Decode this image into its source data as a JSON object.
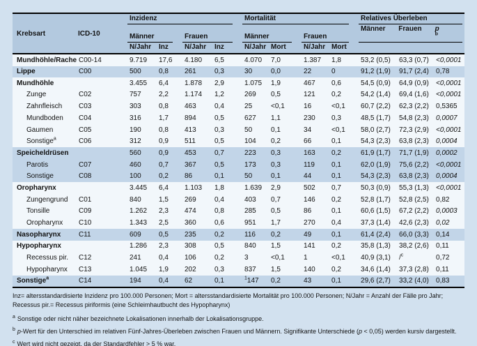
{
  "colors": {
    "page_bg": "#d2e1ef",
    "header_bg": "#b3c9df",
    "band_blue": "#c2d5e8",
    "band_light": "#f2f7fb",
    "rule": "#000000",
    "text": "#111111"
  },
  "table": {
    "headers": {
      "krebsart": "Krebsart",
      "icd10": "ICD-10",
      "inzidenz": "Inzidenz",
      "mortalitaet": "Mortalität",
      "rel_ueberleben": "Relatives Überleben",
      "maenner": "Männer",
      "frauen": "Frauen",
      "n_jahr": "N/Jahr",
      "inz": "Inz",
      "mort": "Mort",
      "p_label": "p",
      "p_sup": "b"
    },
    "rows": [
      {
        "label": "Mundhöhle/Rachen",
        "label_sup": "",
        "icd": "C00-14",
        "group": true,
        "band": "light",
        "p_italic": true,
        "values": [
          "9.719",
          "17,6",
          "4.180",
          "6,5",
          "4.070",
          "7,0",
          "1.387",
          "1,8",
          "53,2 (0,5)",
          "63,3 (0,7)",
          "<0,0001"
        ]
      },
      {
        "label": "Lippe",
        "label_sup": "",
        "icd": "C00",
        "group": true,
        "band": "blue",
        "p_italic": false,
        "values": [
          "500",
          "0,8",
          "261",
          "0,3",
          "30",
          "0,0",
          "22",
          "0",
          "91,2 (1,9)",
          "91,7 (2,4)",
          "0,78"
        ]
      },
      {
        "label": "Mundhöhle",
        "label_sup": "",
        "icd": "",
        "group": true,
        "band": "light",
        "p_italic": true,
        "values": [
          "3.455",
          "6,4",
          "1.878",
          "2,9",
          "1.075",
          "1,9",
          "467",
          "0,6",
          "54,5 (0,9)",
          "64,9 (0,9)",
          "<0,0001"
        ]
      },
      {
        "label": "Zunge",
        "label_sup": "",
        "icd": "C02",
        "group": false,
        "band": "light",
        "p_italic": true,
        "values": [
          "757",
          "2,2",
          "1.174",
          "1,2",
          "269",
          "0,5",
          "121",
          "0,2",
          "54,2 (1,4)",
          "69,4 (1,6)",
          "<0,0001"
        ]
      },
      {
        "label": "Zahnfleisch",
        "label_sup": "",
        "icd": "C03",
        "group": false,
        "band": "light",
        "p_italic": false,
        "values": [
          "303",
          "0,8",
          "463",
          "0,4",
          "25",
          "<0,1",
          "16",
          "<0,1",
          "60,7 (2,2)",
          "62,3 (2,2)",
          "0,5365"
        ]
      },
      {
        "label": "Mundboden",
        "label_sup": "",
        "icd": "C04",
        "group": false,
        "band": "light",
        "p_italic": true,
        "values": [
          "316",
          "1,7",
          "894",
          "0,5",
          "627",
          "1,1",
          "230",
          "0,3",
          "48,5 (1,7)",
          "54,8 (2,3)",
          "0,0007"
        ]
      },
      {
        "label": "Gaumen",
        "label_sup": "",
        "icd": "C05",
        "group": false,
        "band": "light",
        "p_italic": true,
        "values": [
          "190",
          "0,8",
          "413",
          "0,3",
          "50",
          "0,1",
          "34",
          "<0,1",
          "58,0 (2,7)",
          "72,3 (2,9)",
          "<0,0001"
        ]
      },
      {
        "label": "Sonstige",
        "label_sup": "a",
        "icd": "C06",
        "group": false,
        "band": "light",
        "p_italic": true,
        "values": [
          "312",
          "0,9",
          "511",
          "0,5",
          "104",
          "0,2",
          "66",
          "0,1",
          "54,3 (2,3)",
          "63,8 (2,3)",
          "0,0004"
        ]
      },
      {
        "label": "Speicheldrüsen",
        "label_sup": "",
        "icd": "",
        "group": true,
        "band": "blue",
        "p_italic": true,
        "values": [
          "560",
          "0,9",
          "453",
          "0,7",
          "223",
          "0,3",
          "163",
          "0,2",
          "61,9 (1,7)",
          "71,7 (1,9)",
          "0,0002"
        ]
      },
      {
        "label": "Parotis",
        "label_sup": "",
        "icd": "C07",
        "group": false,
        "band": "blue",
        "p_italic": true,
        "values": [
          "460",
          "0,7",
          "367",
          "0,5",
          "173",
          "0,3",
          "119",
          "0,1",
          "62,0 (1,9)",
          "75,6 (2,2)",
          "<0,0001"
        ]
      },
      {
        "label": "Sonstige",
        "label_sup": "",
        "icd": "C08",
        "group": false,
        "band": "blue",
        "p_italic": true,
        "values": [
          "100",
          "0,2",
          "86",
          "0,1",
          "50",
          "0,1",
          "44",
          "0,1",
          "54,3 (2,3)",
          "63,8 (2,3)",
          "0,0004"
        ]
      },
      {
        "label": "Oropharynx",
        "label_sup": "",
        "icd": "",
        "group": true,
        "band": "light",
        "p_italic": true,
        "values": [
          "3.445",
          "6,4",
          "1.103",
          "1,8",
          "1.639",
          "2,9",
          "502",
          "0,7",
          "50,3 (0,9)",
          "55,3 (1,3)",
          "<0,0001"
        ]
      },
      {
        "label": "Zungengrund",
        "label_sup": "",
        "icd": "C01",
        "group": false,
        "band": "light",
        "p_italic": false,
        "values": [
          "840",
          "1,5",
          "269",
          "0,4",
          "403",
          "0,7",
          "146",
          "0,2",
          "52,8 (1,7)",
          "52,8 (2,5)",
          "0,82"
        ]
      },
      {
        "label": "Tonsille",
        "label_sup": "",
        "icd": "C09",
        "group": false,
        "band": "light",
        "p_italic": true,
        "values": [
          "1.262",
          "2,3",
          "474",
          "0,8",
          "285",
          "0,5",
          "86",
          "0,1",
          "60,6 (1,5)",
          "67,2 (2,2)",
          "0,0003"
        ]
      },
      {
        "label": "Oropharynx",
        "label_sup": "",
        "icd": "C10",
        "group": false,
        "band": "light",
        "p_italic": true,
        "values": [
          "1.343",
          "2,5",
          "360",
          "0,6",
          "951",
          "1,7",
          "270",
          "0,4",
          "37,3 (1,4)",
          "42,6 (2,3)",
          "0,02"
        ]
      },
      {
        "label": "Nasopharynx",
        "label_sup": "",
        "icd": "C11",
        "group": true,
        "band": "blue",
        "p_italic": false,
        "values": [
          "609",
          "0,5",
          "235",
          "0,2",
          "116",
          "0,2",
          "49",
          "0,1",
          "61,4 (2,4)",
          "66,0 (3,3)",
          "0,14"
        ]
      },
      {
        "label": "Hypopharynx",
        "label_sup": "",
        "icd": "",
        "group": true,
        "band": "light",
        "p_italic": false,
        "values": [
          "1.286",
          "2,3",
          "308",
          "0,5",
          "840",
          "1,5",
          "141",
          "0,2",
          "35,8 (1,3)",
          "38,2 (2,6)",
          "0,11"
        ]
      },
      {
        "label": "Recessus pir.",
        "label_sup": "",
        "icd": "C12",
        "group": false,
        "band": "light",
        "p_italic": false,
        "values": [
          "241",
          "0,4",
          "106",
          "0,2",
          "3",
          "<0,1",
          "1",
          "<0,1",
          "40,9 (3,1)",
          "/",
          "0,72"
        ],
        "sup_after": {
          "9": "c"
        }
      },
      {
        "label": "Hypopharynx",
        "label_sup": "",
        "icd": "C13",
        "group": false,
        "band": "light",
        "p_italic": false,
        "values": [
          "1.045",
          "1,9",
          "202",
          "0,3",
          "837",
          "1,5",
          "140",
          "0,2",
          "34,6 (1,4)",
          "37,3 (2,8)",
          "0,11"
        ]
      },
      {
        "label": "Sonstige",
        "label_sup": "a",
        "icd": "C14",
        "group": true,
        "band": "blue",
        "p_italic": false,
        "values": [
          "194",
          "0,4",
          "62",
          "0,1",
          "147",
          "0,2",
          "43",
          "0,1",
          "29,6 (2,7)",
          "33,2 (4,0)",
          "0,83"
        ],
        "sup_before": {
          "4": "1"
        }
      }
    ]
  },
  "footnotes": {
    "legend": "Inz= altersstandardisierte Inzidenz pro 100.000 Personen; Mort = altersstandardisierte Mortalität pro 100.000 Personen; N/Jahr = Anzahl der Fälle pro Jahr; Recessus pir.= Recessus piriformis (eine Schleimhautbucht des Hypopharynx)",
    "notes": [
      {
        "sup": "a",
        "segments": [
          {
            "t": "Sonstige oder nicht näher bezeichnete Lokalisationen innerhalb der Lokalisationsgruppe.",
            "i": false
          }
        ]
      },
      {
        "sup": "b",
        "segments": [
          {
            "t": "p",
            "i": true
          },
          {
            "t": "-Wert für den Unterschied im relativen Fünf-Jahres-Überleben zwischen Frauen und Männern. Signifikante Unterschiede (",
            "i": false
          },
          {
            "t": "p",
            "i": true
          },
          {
            "t": " < 0,05) werden kursiv dargestellt.",
            "i": false
          }
        ]
      },
      {
        "sup": "c",
        "segments": [
          {
            "t": "Wert wird nicht gezeigt, da der Standardfehler > 5 % war.",
            "i": false
          }
        ]
      }
    ]
  }
}
